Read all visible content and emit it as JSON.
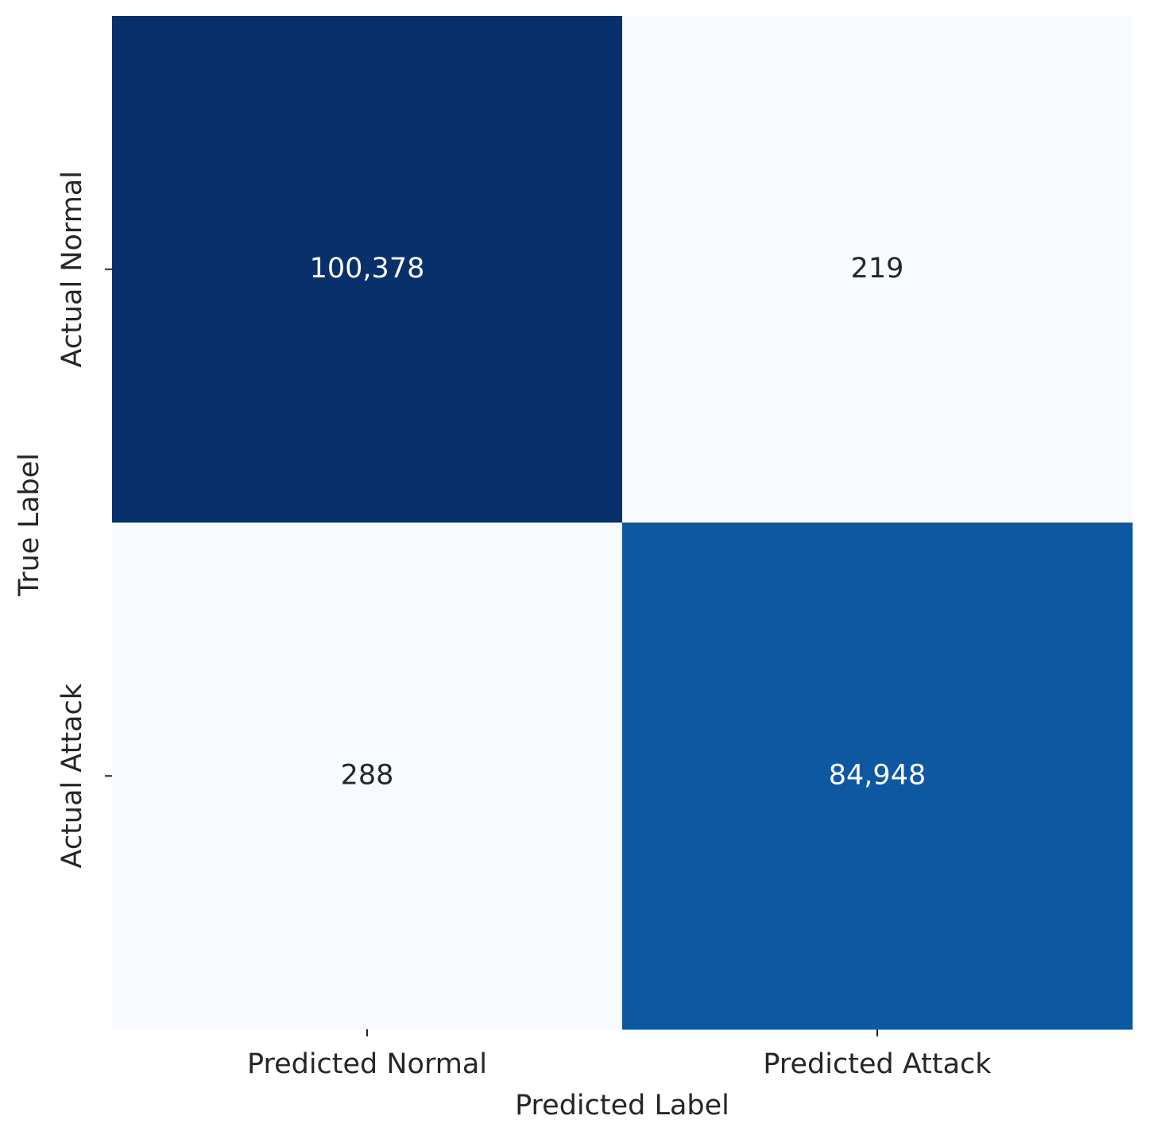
{
  "chart_data": {
    "type": "heatmap",
    "x_categories": [
      "Predicted Normal",
      "Predicted Attack"
    ],
    "y_categories": [
      "Actual Normal",
      "Actual Attack"
    ],
    "values": [
      [
        100378,
        219
      ],
      [
        288,
        84948
      ]
    ],
    "value_labels": [
      [
        "100,378",
        "219"
      ],
      [
        "288",
        "84,948"
      ]
    ],
    "xlabel": "Predicted Label",
    "ylabel": "True Label",
    "colormap": [
      "#f7fbff",
      "#deebf7",
      "#c6dbef",
      "#9ecae1",
      "#6baed6",
      "#4292c6",
      "#2171b5",
      "#08519c",
      "#08306b"
    ]
  }
}
